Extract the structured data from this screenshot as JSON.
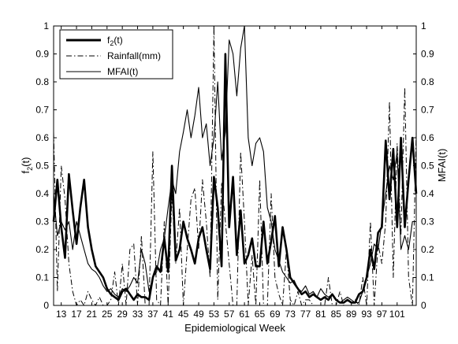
{
  "chart_data": {
    "type": "line",
    "xlabel": "Epidemiological Week",
    "ylabel_left": "f",
    "ylabel_left_sub": "2",
    "ylabel_left_suffix": "(t)",
    "ylabel_right": "MFAI(t)",
    "xlim": [
      11,
      106
    ],
    "ylim": [
      0,
      1
    ],
    "yticks": [
      "0",
      "0.1",
      "0.2",
      "0.3",
      "0.4",
      "0.5",
      "0.6",
      "0.7",
      "0.8",
      "0.9",
      "1"
    ],
    "xticks": [
      "13",
      "17",
      "21",
      "25",
      "29",
      "33",
      "37",
      "41",
      "45",
      "49",
      "53",
      "57",
      "61",
      "65",
      "69",
      "73",
      "77",
      "81",
      "85",
      "89",
      "93",
      "97",
      "101"
    ],
    "grid": false,
    "legend_position": "top-left",
    "series": [
      {
        "name": "f",
        "name_sub": "2",
        "name_suffix": "(t)",
        "style": "solid-thick",
        "x": [
          11,
          12,
          13,
          14,
          15,
          16,
          17,
          18,
          19,
          20,
          21,
          22,
          23,
          24,
          25,
          26,
          27,
          28,
          29,
          30,
          31,
          32,
          33,
          34,
          35,
          36,
          37,
          38,
          39,
          40,
          41,
          42,
          43,
          44,
          45,
          46,
          47,
          48,
          49,
          50,
          51,
          52,
          53,
          54,
          55,
          56,
          57,
          58,
          59,
          60,
          61,
          62,
          63,
          64,
          65,
          66,
          67,
          68,
          69,
          70,
          71,
          72,
          73,
          74,
          75,
          76,
          77,
          78,
          79,
          80,
          81,
          82,
          83,
          84,
          85,
          86,
          87,
          88,
          89,
          90,
          91,
          92,
          93,
          94,
          95,
          96,
          97,
          98,
          99,
          100,
          101,
          102,
          103,
          104,
          105,
          106
        ],
        "values": [
          0.3,
          0.45,
          0.28,
          0.17,
          0.47,
          0.34,
          0.22,
          0.35,
          0.45,
          0.28,
          0.2,
          0.14,
          0.12,
          0.1,
          0.06,
          0.04,
          0.03,
          0.02,
          0.05,
          0.06,
          0.04,
          0.02,
          0.04,
          0.03,
          0.03,
          0.02,
          0.1,
          0.14,
          0.12,
          0.24,
          0.12,
          0.5,
          0.16,
          0.2,
          0.3,
          0.24,
          0.2,
          0.15,
          0.24,
          0.28,
          0.2,
          0.13,
          0.46,
          0.35,
          0.14,
          0.9,
          0.28,
          0.46,
          0.18,
          0.34,
          0.15,
          0.18,
          0.24,
          0.14,
          0.14,
          0.3,
          0.15,
          0.23,
          0.32,
          0.14,
          0.28,
          0.2,
          0.1,
          0.08,
          0.06,
          0.04,
          0.05,
          0.03,
          0.04,
          0.03,
          0.02,
          0.03,
          0.02,
          0.04,
          0.02,
          0.01,
          0.01,
          0.02,
          0.01,
          0.01,
          0.04,
          0.05,
          0.1,
          0.2,
          0.13,
          0.26,
          0.28,
          0.59,
          0.38,
          0.56,
          0.28,
          0.6,
          0.28,
          0.45,
          0.6,
          0.4
        ]
      },
      {
        "name": "Rainfall(mm)",
        "style": "dash-dot",
        "x": [
          11,
          12,
          13,
          14,
          15,
          16,
          17,
          18,
          19,
          20,
          21,
          22,
          23,
          24,
          25,
          26,
          27,
          28,
          29,
          30,
          31,
          32,
          33,
          34,
          35,
          36,
          37,
          38,
          39,
          40,
          41,
          42,
          43,
          44,
          45,
          46,
          47,
          48,
          49,
          50,
          51,
          52,
          53,
          54,
          55,
          56,
          57,
          58,
          59,
          60,
          61,
          62,
          63,
          64,
          65,
          66,
          67,
          68,
          69,
          70,
          71,
          72,
          73,
          74,
          75,
          76,
          77,
          78,
          79,
          80,
          81,
          82,
          83,
          84,
          85,
          86,
          87,
          88,
          89,
          90,
          91,
          92,
          93,
          94,
          95,
          96,
          97,
          98,
          99,
          100,
          101,
          102,
          103,
          104,
          105,
          106
        ],
        "values": [
          0.62,
          0.05,
          0.5,
          0.38,
          0.15,
          0.05,
          0.0,
          0.02,
          0.0,
          0.05,
          0.02,
          0.0,
          0.03,
          0.0,
          0.0,
          0.02,
          0.12,
          0.0,
          0.15,
          0.0,
          0.2,
          0.22,
          0.0,
          0.25,
          0.0,
          0.0,
          0.55,
          0.02,
          0.0,
          0.3,
          0.0,
          0.4,
          0.15,
          0.35,
          0.0,
          0.2,
          0.38,
          0.42,
          0.2,
          0.45,
          0.3,
          0.1,
          1.0,
          0.02,
          0.44,
          0.3,
          0.15,
          0.0,
          0.0,
          0.55,
          0.3,
          0.0,
          0.18,
          0.0,
          0.45,
          0.0,
          0.0,
          0.4,
          0.1,
          0.04,
          0.0,
          0.2,
          0.02,
          0.0,
          0.05,
          0.0,
          0.02,
          0.02,
          0.0,
          0.0,
          0.0,
          0.0,
          0.1,
          0.0,
          0.0,
          0.05,
          0.0,
          0.0,
          0.0,
          0.02,
          0.0,
          0.1,
          0.0,
          0.3,
          0.0,
          0.22,
          0.15,
          0.3,
          0.73,
          0.1,
          0.58,
          0.25,
          0.78,
          0.1,
          0.0,
          0.62
        ]
      },
      {
        "name": "MFAI(t)",
        "style": "solid-thin",
        "x": [
          11,
          12,
          13,
          14,
          15,
          16,
          17,
          18,
          19,
          20,
          21,
          22,
          23,
          24,
          25,
          26,
          27,
          28,
          29,
          30,
          31,
          32,
          33,
          34,
          35,
          36,
          37,
          38,
          39,
          40,
          41,
          42,
          43,
          44,
          45,
          46,
          47,
          48,
          49,
          50,
          51,
          52,
          53,
          54,
          55,
          56,
          57,
          58,
          59,
          60,
          61,
          62,
          63,
          64,
          65,
          66,
          67,
          68,
          69,
          70,
          71,
          72,
          73,
          74,
          75,
          76,
          77,
          78,
          79,
          80,
          81,
          82,
          83,
          84,
          85,
          86,
          87,
          88,
          89,
          90,
          91,
          92,
          93,
          94,
          95,
          96,
          97,
          98,
          99,
          100,
          101,
          102,
          103,
          104,
          105,
          106
        ],
        "values": [
          0.4,
          0.25,
          0.3,
          0.27,
          0.3,
          0.2,
          0.3,
          0.25,
          0.2,
          0.15,
          0.13,
          0.12,
          0.1,
          0.07,
          0.05,
          0.06,
          0.04,
          0.03,
          0.06,
          0.05,
          0.07,
          0.1,
          0.08,
          0.2,
          0.15,
          0.05,
          0.1,
          0.12,
          0.2,
          0.24,
          0.35,
          0.45,
          0.4,
          0.55,
          0.62,
          0.7,
          0.6,
          0.68,
          0.78,
          0.6,
          0.65,
          0.5,
          0.6,
          0.8,
          0.52,
          0.62,
          0.95,
          0.9,
          0.75,
          0.92,
          1.0,
          0.6,
          0.5,
          0.58,
          0.6,
          0.55,
          0.35,
          0.3,
          0.2,
          0.16,
          0.12,
          0.1,
          0.08,
          0.09,
          0.06,
          0.05,
          0.07,
          0.04,
          0.05,
          0.03,
          0.06,
          0.04,
          0.03,
          0.04,
          0.02,
          0.01,
          0.02,
          0.03,
          0.02,
          0.01,
          0.01,
          0.05,
          0.1,
          0.15,
          0.22,
          0.2,
          0.3,
          0.4,
          0.5,
          0.45,
          0.55,
          0.2,
          0.25,
          0.2,
          0.3,
          0.3
        ]
      }
    ]
  }
}
